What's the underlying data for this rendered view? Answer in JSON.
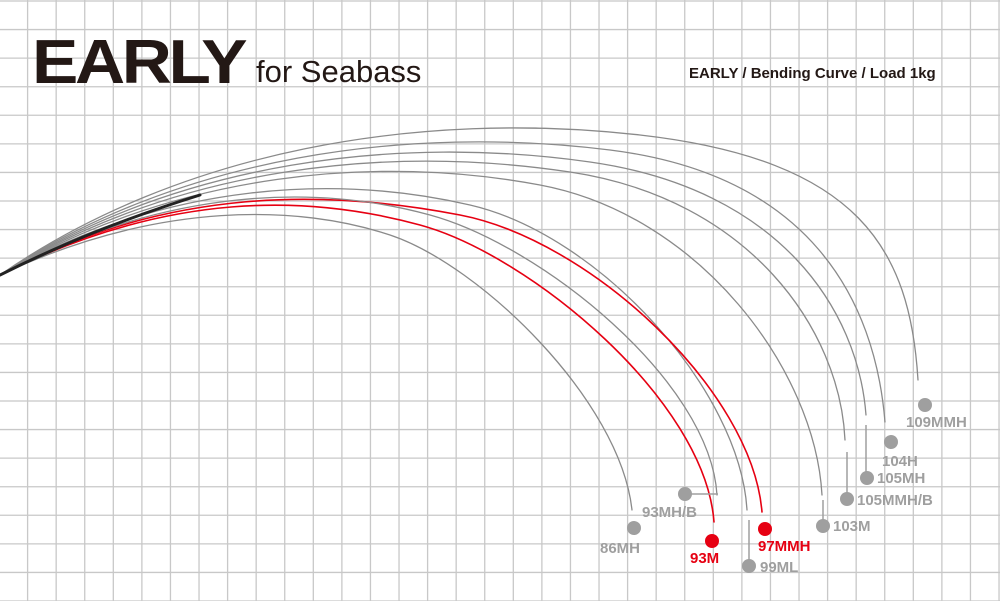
{
  "header": {
    "title": "EARLY",
    "subtitle": "for Seabass",
    "caption": "EARLY / Bending Curve / Load 1kg"
  },
  "colors": {
    "highlight": "#e60012",
    "standard": "#9f9f9f",
    "grid": "#c8c8c8"
  },
  "models": [
    {
      "name": "109MMH",
      "highlight": false
    },
    {
      "name": "104H",
      "highlight": false
    },
    {
      "name": "105MH",
      "highlight": false
    },
    {
      "name": "105MMH/B",
      "highlight": false
    },
    {
      "name": "103M",
      "highlight": false
    },
    {
      "name": "97MMH",
      "highlight": true
    },
    {
      "name": "99ML",
      "highlight": false
    },
    {
      "name": "93MH/B",
      "highlight": false
    },
    {
      "name": "93M",
      "highlight": true
    },
    {
      "name": "86MH",
      "highlight": false
    }
  ]
}
